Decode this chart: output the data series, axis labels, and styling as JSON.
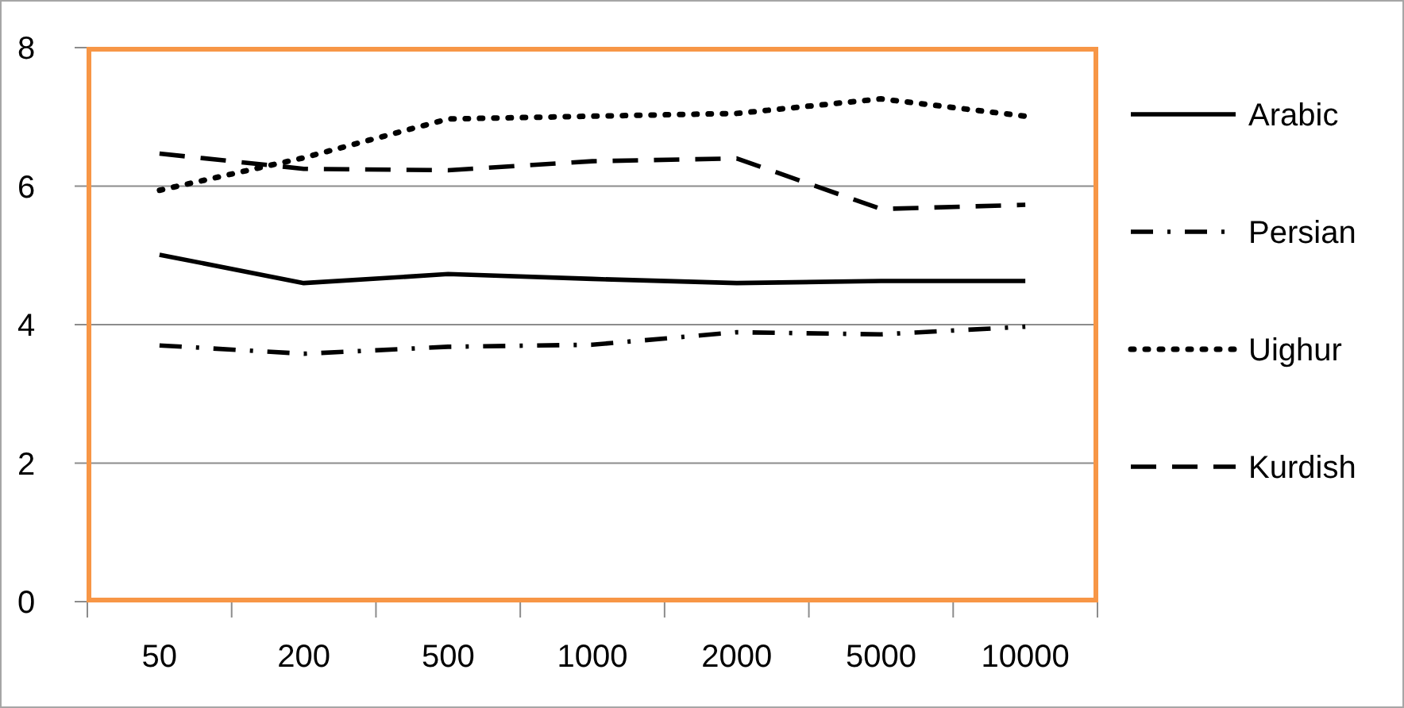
{
  "chart_data": {
    "type": "line",
    "categories": [
      "50",
      "200",
      "500",
      "1000",
      "2000",
      "5000",
      "10000"
    ],
    "series": [
      {
        "name": "Arabic",
        "color": "#000000",
        "line_style": "solid",
        "values": [
          5.01,
          4.6,
          4.73,
          4.66,
          4.6,
          4.63,
          4.63
        ]
      },
      {
        "name": "Persian",
        "color": "#000000",
        "line_style": "dashdot",
        "values": [
          3.7,
          3.58,
          3.68,
          3.71,
          3.89,
          3.86,
          3.97
        ]
      },
      {
        "name": "Uighur",
        "color": "#000000",
        "line_style": "dotted",
        "values": [
          5.94,
          6.41,
          6.97,
          7.01,
          7.05,
          7.26,
          7.01
        ]
      },
      {
        "name": "Kurdish",
        "color": "#000000",
        "line_style": "dashed",
        "values": [
          6.47,
          6.25,
          6.23,
          6.36,
          6.4,
          5.67,
          5.73
        ]
      }
    ],
    "ylim": [
      0,
      8
    ],
    "yticks": [
      0,
      2,
      4,
      6,
      8
    ],
    "grid": "y",
    "legend": "right",
    "marker": "none"
  }
}
